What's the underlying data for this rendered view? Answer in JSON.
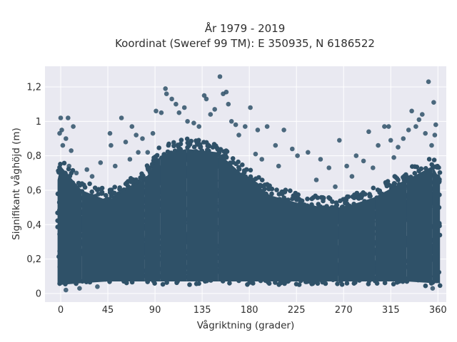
{
  "chart_data": {
    "type": "scatter",
    "title": "År 1979 - 2019",
    "subtitle": "Koordinat (Sweref 99 TM): E 350935, N 6186522",
    "xlabel": "Vågriktning (grader)",
    "ylabel": "Signifikant våghöjd (m)",
    "xlim": [
      -15,
      368
    ],
    "ylim": [
      -0.05,
      1.32
    ],
    "x_ticks": [
      0,
      45,
      90,
      135,
      180,
      225,
      270,
      315,
      360
    ],
    "x_tick_labels": [
      "0",
      "45",
      "90",
      "135",
      "180",
      "225",
      "270",
      "315",
      "360"
    ],
    "y_ticks": [
      0,
      0.2,
      0.4,
      0.6,
      0.8,
      1,
      1.2
    ],
    "y_tick_labels": [
      "0",
      "0,2",
      "0,4",
      "0,6",
      "0,8",
      "1",
      "1,2"
    ],
    "grid": true,
    "legend": "none",
    "colors": {
      "marker": "#2f5168",
      "plot_background": "#e9e9f1",
      "grid": "#ffffff"
    },
    "envelope": [
      {
        "x": -3,
        "y_min": 0.04,
        "y_max": 0.72
      },
      {
        "x": 0,
        "y_min": 0.03,
        "y_max": 0.8
      },
      {
        "x": 20,
        "y_min": 0.04,
        "y_max": 0.66
      },
      {
        "x": 45,
        "y_min": 0.05,
        "y_max": 0.6
      },
      {
        "x": 80,
        "y_min": 0.05,
        "y_max": 0.72
      },
      {
        "x": 95,
        "y_min": 0.05,
        "y_max": 0.86
      },
      {
        "x": 120,
        "y_min": 0.05,
        "y_max": 0.9
      },
      {
        "x": 150,
        "y_min": 0.05,
        "y_max": 0.88
      },
      {
        "x": 170,
        "y_min": 0.05,
        "y_max": 0.77
      },
      {
        "x": 200,
        "y_min": 0.05,
        "y_max": 0.63
      },
      {
        "x": 230,
        "y_min": 0.05,
        "y_max": 0.58
      },
      {
        "x": 265,
        "y_min": 0.05,
        "y_max": 0.55
      },
      {
        "x": 300,
        "y_min": 0.05,
        "y_max": 0.62
      },
      {
        "x": 330,
        "y_min": 0.05,
        "y_max": 0.72
      },
      {
        "x": 355,
        "y_min": 0.04,
        "y_max": 0.8
      },
      {
        "x": 362,
        "y_min": 0.04,
        "y_max": 0.72
      }
    ],
    "points": [
      {
        "x": 0,
        "y": 1.02
      },
      {
        "x": 7,
        "y": 1.02
      },
      {
        "x": 1,
        "y": 0.95
      },
      {
        "x": -1,
        "y": 0.93
      },
      {
        "x": 12,
        "y": 0.97
      },
      {
        "x": 5,
        "y": 0.9
      },
      {
        "x": 10,
        "y": 0.83
      },
      {
        "x": 2,
        "y": 0.86
      },
      {
        "x": 25,
        "y": 0.72
      },
      {
        "x": 38,
        "y": 0.76
      },
      {
        "x": 47,
        "y": 0.93
      },
      {
        "x": 48,
        "y": 0.86
      },
      {
        "x": 58,
        "y": 1.02
      },
      {
        "x": 62,
        "y": 0.88
      },
      {
        "x": 68,
        "y": 0.97
      },
      {
        "x": 72,
        "y": 0.92
      },
      {
        "x": 78,
        "y": 0.9
      },
      {
        "x": 83,
        "y": 0.82
      },
      {
        "x": 88,
        "y": 0.93
      },
      {
        "x": 91,
        "y": 1.06
      },
      {
        "x": 96,
        "y": 1.05
      },
      {
        "x": 100,
        "y": 1.19
      },
      {
        "x": 101,
        "y": 1.16
      },
      {
        "x": 106,
        "y": 1.13
      },
      {
        "x": 110,
        "y": 1.1
      },
      {
        "x": 113,
        "y": 1.05
      },
      {
        "x": 118,
        "y": 1.08
      },
      {
        "x": 121,
        "y": 1.0
      },
      {
        "x": 127,
        "y": 0.99
      },
      {
        "x": 132,
        "y": 0.97
      },
      {
        "x": 137,
        "y": 1.15
      },
      {
        "x": 139,
        "y": 1.13
      },
      {
        "x": 143,
        "y": 1.04
      },
      {
        "x": 147,
        "y": 1.07
      },
      {
        "x": 152,
        "y": 1.26
      },
      {
        "x": 155,
        "y": 1.16
      },
      {
        "x": 158,
        "y": 1.17
      },
      {
        "x": 160,
        "y": 1.1
      },
      {
        "x": 163,
        "y": 1.0
      },
      {
        "x": 167,
        "y": 0.98
      },
      {
        "x": 170,
        "y": 0.92
      },
      {
        "x": 176,
        "y": 0.97
      },
      {
        "x": 181,
        "y": 1.08
      },
      {
        "x": 188,
        "y": 0.95
      },
      {
        "x": 197,
        "y": 0.97
      },
      {
        "x": 205,
        "y": 0.86
      },
      {
        "x": 213,
        "y": 0.95
      },
      {
        "x": 221,
        "y": 0.84
      },
      {
        "x": 226,
        "y": 0.8
      },
      {
        "x": 236,
        "y": 0.82
      },
      {
        "x": 248,
        "y": 0.78
      },
      {
        "x": 256,
        "y": 0.73
      },
      {
        "x": 266,
        "y": 0.89
      },
      {
        "x": 273,
        "y": 0.74
      },
      {
        "x": 282,
        "y": 0.8
      },
      {
        "x": 289,
        "y": 0.77
      },
      {
        "x": 294,
        "y": 0.94
      },
      {
        "x": 303,
        "y": 0.86
      },
      {
        "x": 309,
        "y": 0.97
      },
      {
        "x": 313,
        "y": 0.97
      },
      {
        "x": 315,
        "y": 0.89
      },
      {
        "x": 322,
        "y": 0.85
      },
      {
        "x": 327,
        "y": 0.9
      },
      {
        "x": 332,
        "y": 0.95
      },
      {
        "x": 335,
        "y": 1.06
      },
      {
        "x": 339,
        "y": 0.97
      },
      {
        "x": 342,
        "y": 1.01
      },
      {
        "x": 345,
        "y": 1.04
      },
      {
        "x": 348,
        "y": 0.93
      },
      {
        "x": 351,
        "y": 1.23
      },
      {
        "x": 356,
        "y": 1.11
      },
      {
        "x": 358,
        "y": 0.98
      },
      {
        "x": 357,
        "y": 0.92
      },
      {
        "x": 354,
        "y": 0.86
      },
      {
        "x": 8,
        "y": 0.74
      },
      {
        "x": 15,
        "y": 0.7
      },
      {
        "x": 30,
        "y": 0.68
      },
      {
        "x": 52,
        "y": 0.74
      },
      {
        "x": 66,
        "y": 0.78
      },
      {
        "x": 74,
        "y": 0.82
      },
      {
        "x": 186,
        "y": 0.81
      },
      {
        "x": 192,
        "y": 0.78
      },
      {
        "x": 208,
        "y": 0.74
      },
      {
        "x": 244,
        "y": 0.66
      },
      {
        "x": 262,
        "y": 0.62
      },
      {
        "x": 278,
        "y": 0.68
      },
      {
        "x": 298,
        "y": 0.73
      },
      {
        "x": 318,
        "y": 0.79
      },
      {
        "x": 5,
        "y": 0.02
      },
      {
        "x": 18,
        "y": 0.03
      },
      {
        "x": 35,
        "y": 0.04
      },
      {
        "x": 355,
        "y": 0.03
      }
    ]
  }
}
